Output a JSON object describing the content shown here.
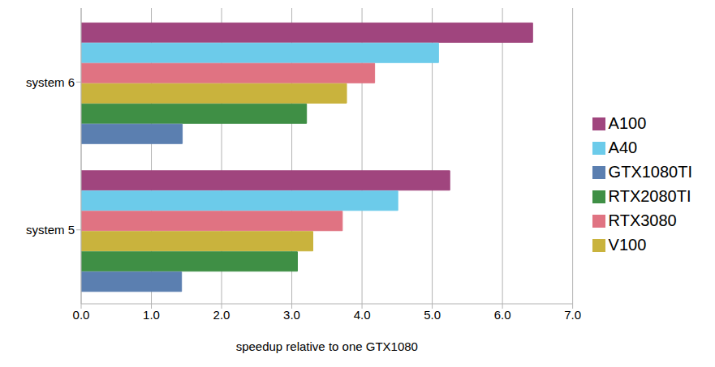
{
  "chart_data": {
    "type": "bar",
    "orientation": "horizontal",
    "x_label": "speedup relative to one GTX1080",
    "categories": [
      "system 6",
      "system 5"
    ],
    "series": [
      {
        "name": "A100",
        "color": "#a0457e",
        "values": [
          6.43,
          5.25
        ]
      },
      {
        "name": "A40",
        "color": "#6ccbea",
        "values": [
          5.09,
          4.51
        ]
      },
      {
        "name": "RTX3080",
        "color": "#e07382",
        "values": [
          4.18,
          3.72
        ]
      },
      {
        "name": "V100",
        "color": "#c9b33d",
        "values": [
          3.78,
          3.3
        ]
      },
      {
        "name": "RTX2080TI",
        "color": "#3f8f45",
        "values": [
          3.21,
          3.08
        ]
      },
      {
        "name": "GTX1080TI",
        "color": "#5b7fb0",
        "values": [
          1.44,
          1.43
        ]
      }
    ],
    "xlim": [
      0,
      7
    ],
    "xticks": [
      {
        "value": 0,
        "label": "0.0"
      },
      {
        "value": 1,
        "label": "1.0"
      },
      {
        "value": 2,
        "label": "2.0"
      },
      {
        "value": 3,
        "label": "3.0"
      },
      {
        "value": 4,
        "label": "4.0"
      },
      {
        "value": 5,
        "label": "5.0"
      },
      {
        "value": 6,
        "label": "6.0"
      },
      {
        "value": 7,
        "label": "7.0"
      }
    ],
    "grid": true,
    "legend": "right"
  }
}
